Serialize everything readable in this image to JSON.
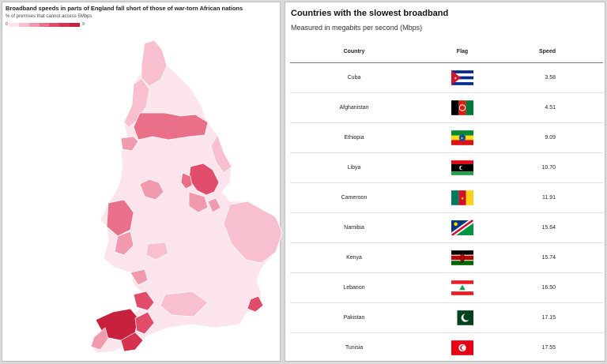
{
  "left_panel": {
    "title": "Broadband speeds in parts of England fall short of those of war-torn African nations",
    "subtitle": "% of premises that cannot access 5Mbps",
    "legend": {
      "min": "0",
      "max": "9",
      "colors": [
        "#fce4ec",
        "#f8c0cf",
        "#f29aad",
        "#ea6f88",
        "#e14c6a",
        "#d5324f",
        "#c8213e"
      ]
    }
  },
  "right_panel": {
    "title": "Countries with the slowest broadband",
    "subtitle": "Measured in megabits per second (Mbps)",
    "columns": [
      "Country",
      "Flag",
      "Speed"
    ]
  },
  "chart_data": {
    "type": "table",
    "rows": [
      {
        "country": "Cuba",
        "flag": "cuba-flag-icon",
        "speed": "3.58"
      },
      {
        "country": "Afghanistan",
        "flag": "afghanistan-flag-icon",
        "speed": "4.51"
      },
      {
        "country": "Ethiopia",
        "flag": "ethiopia-flag-icon",
        "speed": "9.09"
      },
      {
        "country": "Libya",
        "flag": "libya-flag-icon",
        "speed": "10.70"
      },
      {
        "country": "Cameroon",
        "flag": "cameroon-flag-icon",
        "speed": "11.91"
      },
      {
        "country": "Namibia",
        "flag": "namibia-flag-icon",
        "speed": "15.64"
      },
      {
        "country": "Kenya",
        "flag": "kenya-flag-icon",
        "speed": "15.74"
      },
      {
        "country": "Lebanon",
        "flag": "lebanon-flag-icon",
        "speed": "16.50"
      },
      {
        "country": "Pakistan",
        "flag": "pakistan-flag-icon",
        "speed": "17.15"
      },
      {
        "country": "Tunisia",
        "flag": "tunisia-flag-icon",
        "speed": "17.55"
      }
    ]
  }
}
